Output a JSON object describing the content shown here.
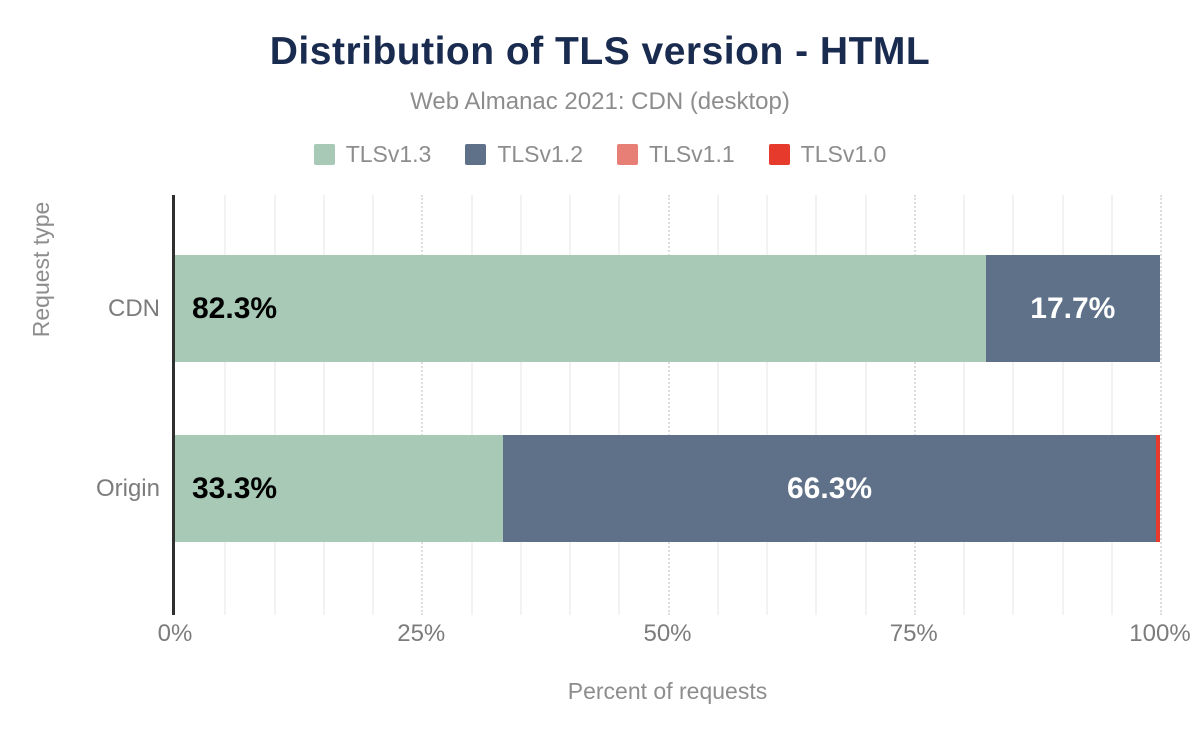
{
  "chart_data": {
    "type": "bar",
    "variant": "horizontal-stacked",
    "title": "Distribution of TLS version - HTML",
    "subtitle": "Web Almanac 2021: CDN (desktop)",
    "categories": [
      "CDN",
      "Origin"
    ],
    "series": [
      {
        "name": "TLSv1.3",
        "color": "#a7c9b5",
        "values": [
          82.3,
          33.3
        ]
      },
      {
        "name": "TLSv1.2",
        "color": "#5f7189",
        "values": [
          17.7,
          66.3
        ]
      },
      {
        "name": "TLSv1.1",
        "color": "#e77f76",
        "values": [
          0,
          0
        ]
      },
      {
        "name": "TLSv1.0",
        "color": "#e63b2c",
        "values": [
          0,
          0.4
        ]
      }
    ],
    "data_labels": [
      [
        "82.3%",
        "17.7%",
        "",
        ""
      ],
      [
        "33.3%",
        "66.3%",
        "",
        ""
      ]
    ],
    "xlabel": "Percent of requests",
    "ylabel": "Request type",
    "xlim": [
      0,
      100
    ],
    "x_ticks": [
      {
        "label": "0%",
        "value": 0
      },
      {
        "label": "25%",
        "value": 25
      },
      {
        "label": "50%",
        "value": 50
      },
      {
        "label": "75%",
        "value": 75
      },
      {
        "label": "100%",
        "value": 100
      }
    ],
    "grid": {
      "minor_step": 5,
      "major_step": 25
    },
    "legend_position": "top-center"
  },
  "colors": {
    "title": "#1a2b50",
    "muted_text": "#8d8d8d",
    "axis_text": "#7c7c7c",
    "axis_line": "#2f2f2f",
    "label_on_light": "#000000",
    "label_on_dark": "#ffffff"
  }
}
